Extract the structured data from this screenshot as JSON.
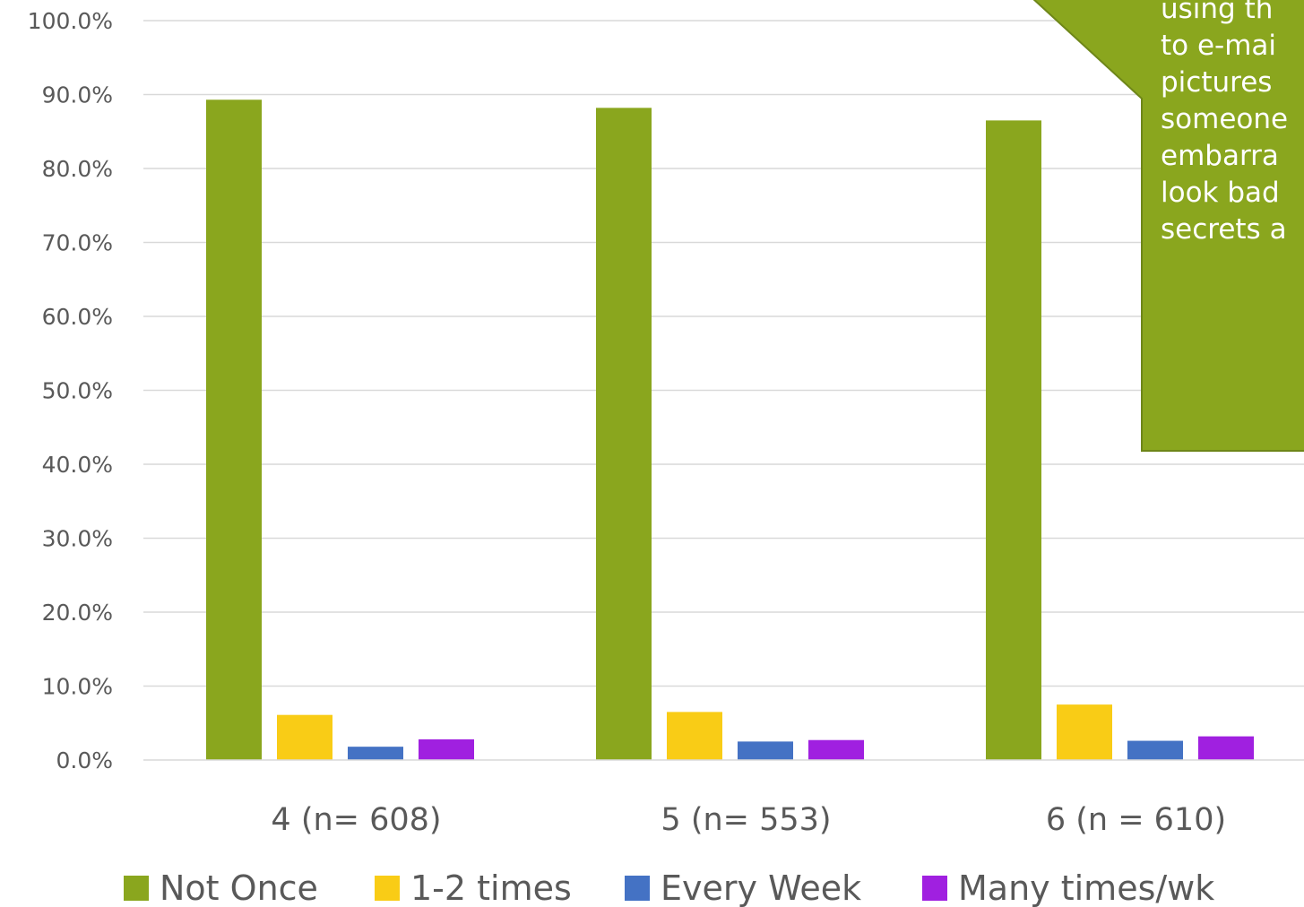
{
  "chart_data": {
    "type": "bar",
    "title": "",
    "xlabel": "",
    "ylabel": "",
    "ylim": [
      0,
      100
    ],
    "y_tick_labels": [
      "0.0%",
      "10.0%",
      "20.0%",
      "30.0%",
      "40.0%",
      "50.0%",
      "60.0%",
      "70.0%",
      "80.0%",
      "90.0%",
      "100.0%"
    ],
    "grid": true,
    "legend_position": "bottom",
    "categories": [
      "4 (n= 608)",
      "5 (n= 553)",
      "6 (n = 610)"
    ],
    "series": [
      {
        "name": "Not Once",
        "color": "#8aa61e",
        "values": [
          89.3,
          88.2,
          86.5
        ]
      },
      {
        "name": "1-2 times",
        "color": "#f9cc16",
        "values": [
          6.1,
          6.5,
          7.5
        ]
      },
      {
        "name": "Every Week",
        "color": "#4472c4",
        "values": [
          1.8,
          2.5,
          2.6
        ]
      },
      {
        "name": "Many times/wk",
        "color": "#a020e0",
        "values": [
          2.8,
          2.7,
          3.2
        ]
      }
    ]
  },
  "callout": {
    "fill": "#8aa61e",
    "border": "#6e8619",
    "lines": [
      "using th",
      "to e-mai",
      "pictures",
      "someone",
      "embarra",
      "look bad",
      "secrets a"
    ]
  }
}
